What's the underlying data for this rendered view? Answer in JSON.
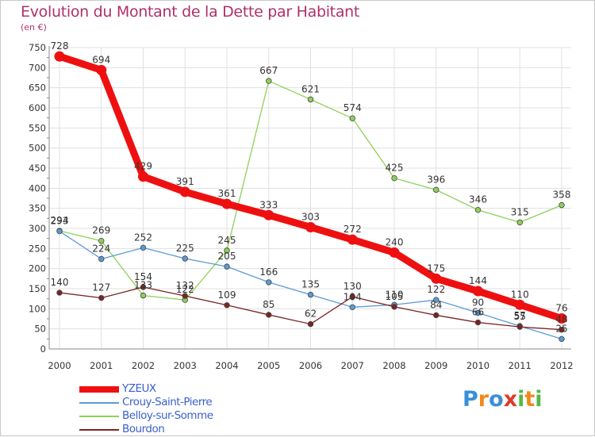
{
  "title": "Evolution du Montant de la Dette par Habitant",
  "unit_label": "(en €)",
  "logo": {
    "letters": [
      "P",
      "r",
      "o",
      "x",
      "i",
      "t",
      "i"
    ],
    "colors": [
      "#3a8fd8",
      "#f08a1c",
      "#3a8fd8",
      "#e03a2a",
      "#56b848",
      "#f08a1c",
      "#56b848"
    ]
  },
  "chart_data": {
    "type": "line",
    "title": "Evolution du Montant de la Dette par Habitant",
    "ylabel": "(en €)",
    "xlabel": "",
    "x": [
      "2000",
      "2001",
      "2002",
      "2003",
      "2004",
      "2005",
      "2006",
      "2007",
      "2008",
      "2009",
      "2010",
      "2011",
      "2012"
    ],
    "ylim": [
      0,
      750
    ],
    "yticks": [
      "0",
      "50",
      "100",
      "150",
      "200",
      "250",
      "300",
      "350",
      "400",
      "450",
      "500",
      "550",
      "600",
      "650",
      "700",
      "750"
    ],
    "grid": true,
    "legend": "bottom-left",
    "series": [
      {
        "name": "YZEUX",
        "color": "#ee1010",
        "values": [
          728,
          694,
          429,
          391,
          361,
          333,
          303,
          272,
          240,
          175,
          144,
          110,
          76
        ],
        "labels": [
          "728",
          "694",
          "429",
          "391",
          "361",
          "333",
          "303",
          "272",
          "240",
          "175",
          "144",
          "110",
          "76"
        ]
      },
      {
        "name": "Crouy-Saint-Pierre",
        "color": "#5b9bd5",
        "values": [
          293,
          224,
          252,
          225,
          205,
          166,
          135,
          104,
          110,
          122,
          90,
          57,
          25
        ],
        "labels": [
          "293",
          "224",
          "252",
          "225",
          "205",
          "166",
          "135",
          "104",
          "110",
          "122",
          "90",
          "57",
          "25"
        ]
      },
      {
        "name": "Belloy-sur-Somme",
        "color": "#8fd05a",
        "values": [
          294,
          269,
          133,
          122,
          245,
          667,
          621,
          574,
          425,
          396,
          346,
          315,
          358
        ],
        "labels": [
          "294",
          "269",
          "133",
          "122",
          "245",
          "667",
          "621",
          "574",
          "425",
          "396",
          "346",
          "315",
          "358"
        ]
      },
      {
        "name": "Bourdon",
        "color": "#7a2424",
        "values": [
          140,
          127,
          154,
          132,
          109,
          85,
          62,
          130,
          105,
          84,
          66,
          55,
          48
        ],
        "labels": [
          "140",
          "127",
          "154",
          "132",
          "109",
          "85",
          "62",
          "130",
          "105",
          "84",
          "66",
          "55",
          "48"
        ]
      }
    ]
  }
}
